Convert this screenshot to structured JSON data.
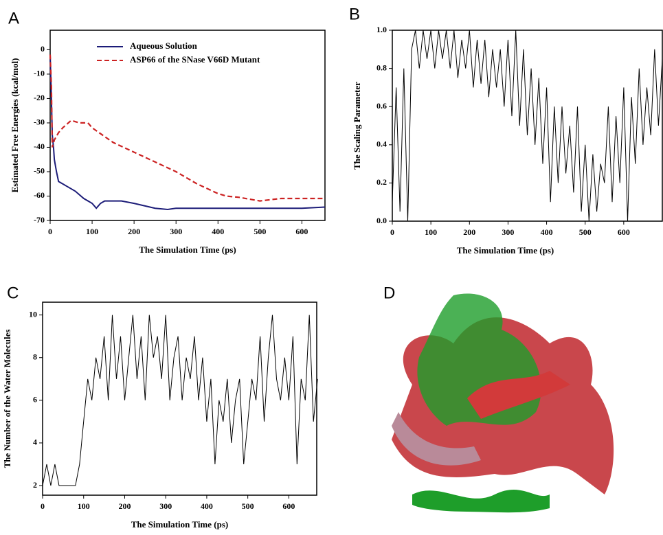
{
  "chart_data": [
    {
      "type": "line",
      "panel_label": "A",
      "xlabel": "The Simulation Time (ps)",
      "ylabel": "Estimated Free Energies (kcal/mol)",
      "xlim": [
        0,
        655
      ],
      "ylim": [
        -70,
        8
      ],
      "xticks": [
        0,
        100,
        200,
        300,
        400,
        500,
        600
      ],
      "yticks": [
        0,
        -10,
        -20,
        -30,
        -40,
        -50,
        -60,
        -70
      ],
      "legend": "upper center",
      "series": [
        {
          "name": "Aqueous Solution",
          "color": "#1c1c78",
          "dash": false,
          "x": [
            0,
            3,
            5,
            8,
            10,
            15,
            20,
            30,
            40,
            60,
            80,
            100,
            110,
            120,
            130,
            150,
            170,
            200,
            250,
            280,
            300,
            400,
            500,
            600,
            655
          ],
          "values": [
            -2,
            -20,
            -35,
            -40,
            -45,
            -50,
            -54,
            -55,
            -56,
            -58,
            -61,
            -63,
            -65,
            -63,
            -62,
            -62,
            -62,
            -63,
            -65,
            -65.5,
            -65,
            -65,
            -65,
            -65,
            -64.5
          ]
        },
        {
          "name": "ASP66 of the SNase V66D Mutant",
          "color": "#cc2222",
          "dash": true,
          "x": [
            0,
            3,
            5,
            10,
            20,
            30,
            50,
            70,
            90,
            100,
            150,
            200,
            250,
            300,
            350,
            400,
            420,
            450,
            500,
            550,
            600,
            655
          ],
          "values": [
            -2,
            -15,
            -40,
            -37,
            -34,
            -32,
            -29,
            -30,
            -30,
            -32,
            -38,
            -42,
            -46,
            -50,
            -55,
            -59,
            -60,
            -60.5,
            -62,
            -61,
            -61,
            -61
          ]
        }
      ]
    },
    {
      "type": "line",
      "panel_label": "B",
      "xlabel": "The Simulation Time (ps)",
      "ylabel": "The Scaling Parameter",
      "xlim": [
        0,
        700
      ],
      "ylim": [
        0,
        1
      ],
      "xticks": [
        0,
        100,
        200,
        300,
        400,
        500,
        600
      ],
      "yticks": [
        {
          "value": 0,
          "label": "0.0"
        },
        {
          "value": 0.2,
          "label": "0.2"
        },
        {
          "value": 0.4,
          "label": "0.4"
        },
        {
          "value": 0.6,
          "label": "0.6"
        },
        {
          "value": 0.8,
          "label": "0.8"
        },
        {
          "value": 1,
          "label": "1.0"
        }
      ],
      "x": [
        0,
        10,
        20,
        30,
        40,
        50,
        60,
        70,
        80,
        90,
        100,
        110,
        120,
        130,
        140,
        150,
        160,
        170,
        180,
        190,
        200,
        210,
        220,
        230,
        240,
        250,
        260,
        270,
        280,
        290,
        300,
        310,
        320,
        330,
        340,
        350,
        360,
        370,
        380,
        390,
        400,
        410,
        420,
        430,
        440,
        450,
        460,
        470,
        480,
        490,
        500,
        510,
        520,
        530,
        540,
        550,
        560,
        570,
        580,
        590,
        600,
        610,
        620,
        630,
        640,
        650,
        660,
        670,
        680,
        690,
        700
      ],
      "series": [
        {
          "color": "#000000",
          "dash": false,
          "values": [
            0.1,
            0.7,
            0.05,
            0.8,
            0.0,
            0.9,
            1.0,
            0.8,
            1.0,
            0.85,
            1.0,
            0.8,
            1.0,
            0.85,
            1.0,
            0.8,
            1.0,
            0.75,
            0.95,
            0.8,
            1.0,
            0.7,
            0.95,
            0.72,
            0.95,
            0.65,
            0.9,
            0.7,
            0.9,
            0.6,
            0.95,
            0.55,
            1.0,
            0.5,
            0.9,
            0.45,
            0.8,
            0.4,
            0.75,
            0.3,
            0.7,
            0.1,
            0.6,
            0.2,
            0.6,
            0.25,
            0.5,
            0.15,
            0.6,
            0.05,
            0.4,
            0.0,
            0.35,
            0.05,
            0.3,
            0.2,
            0.6,
            0.1,
            0.55,
            0.2,
            0.7,
            0.0,
            0.65,
            0.3,
            0.8,
            0.4,
            0.7,
            0.45,
            0.9,
            0.5,
            0.85
          ]
        }
      ]
    },
    {
      "type": "line",
      "panel_label": "C",
      "xlabel": "The Simulation Time (ps)",
      "ylabel": "The Number of the Water Molecules",
      "xlim": [
        0,
        668
      ],
      "ylim": [
        1.55,
        10.6
      ],
      "xticks": [
        0,
        100,
        200,
        300,
        400,
        500,
        600
      ],
      "yticks": [
        2,
        4,
        6,
        8,
        10
      ],
      "x": [
        0,
        10,
        20,
        30,
        40,
        50,
        60,
        70,
        80,
        90,
        100,
        110,
        120,
        130,
        140,
        150,
        160,
        170,
        180,
        190,
        200,
        210,
        220,
        230,
        240,
        250,
        260,
        270,
        280,
        290,
        300,
        310,
        320,
        330,
        340,
        350,
        360,
        370,
        380,
        390,
        400,
        410,
        420,
        430,
        440,
        450,
        460,
        470,
        480,
        490,
        500,
        510,
        520,
        530,
        540,
        550,
        560,
        570,
        580,
        590,
        600,
        610,
        620,
        630,
        640,
        650,
        660,
        670
      ],
      "series": [
        {
          "color": "#000000",
          "dash": false,
          "values": [
            2,
            3,
            2,
            3,
            2,
            2,
            2,
            2,
            2,
            3,
            5,
            7,
            6,
            8,
            7,
            9,
            6,
            10,
            7,
            9,
            6,
            8,
            10,
            7,
            9,
            6,
            10,
            8,
            9,
            7,
            10,
            6,
            8,
            9,
            6,
            8,
            7,
            9,
            6,
            8,
            5,
            7,
            3,
            6,
            5,
            7,
            4,
            6,
            7,
            3,
            5,
            7,
            6,
            9,
            5,
            8,
            10,
            7,
            6,
            8,
            6,
            9,
            3,
            7,
            6,
            10,
            5,
            7
          ]
        }
      ]
    }
  ],
  "image_panel": {
    "panel_label": "D"
  }
}
